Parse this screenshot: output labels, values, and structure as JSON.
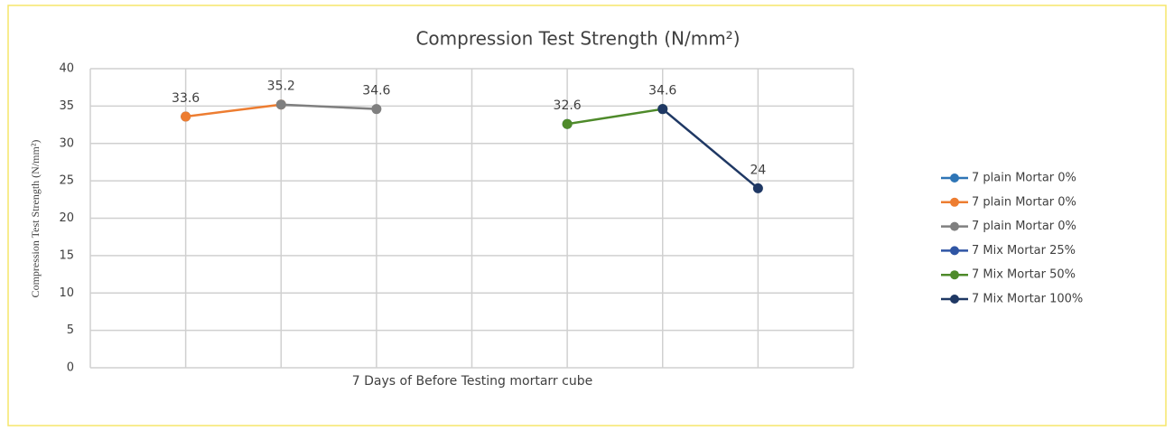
{
  "chart_data": {
    "type": "line",
    "title": "Compression Test Strength (N/mm²)",
    "x_label": "7 Days of Before Testing mortarr cube",
    "y_label": "Compression Test Strength (N/mm²)",
    "categories": [
      null,
      null,
      null,
      null,
      null,
      null,
      null
    ],
    "series": [
      {
        "name": "7 plain Mortar 0%",
        "color": "#2e75b6",
        "values": [
          33.6,
          null,
          null,
          null,
          null,
          null,
          null
        ]
      },
      {
        "name": "7 plain Mortar 0%",
        "color": "#ed7d31",
        "values": [
          33.6,
          35.2,
          null,
          null,
          null,
          null,
          null
        ]
      },
      {
        "name": "7 plain Mortar 0%",
        "color": "#7f7f7f",
        "values": [
          null,
          35.2,
          34.6,
          null,
          null,
          null,
          null
        ]
      },
      {
        "name": "7 Mix Mortar 25%",
        "color": "#2f55a4",
        "values": [
          null,
          null,
          null,
          null,
          32.6,
          null,
          null
        ]
      },
      {
        "name": "7 Mix Mortar 50%",
        "color": "#4e8a2a",
        "values": [
          null,
          null,
          null,
          null,
          32.6,
          34.6,
          null
        ]
      },
      {
        "name": "7 Mix Mortar 100%",
        "color": "#1f3864",
        "values": [
          null,
          null,
          null,
          null,
          null,
          34.6,
          24
        ]
      }
    ],
    "ylim": [
      0,
      40
    ],
    "yticks": [
      0,
      5,
      10,
      15,
      20,
      25,
      30,
      35,
      40
    ],
    "grid": true,
    "legend": "right"
  }
}
